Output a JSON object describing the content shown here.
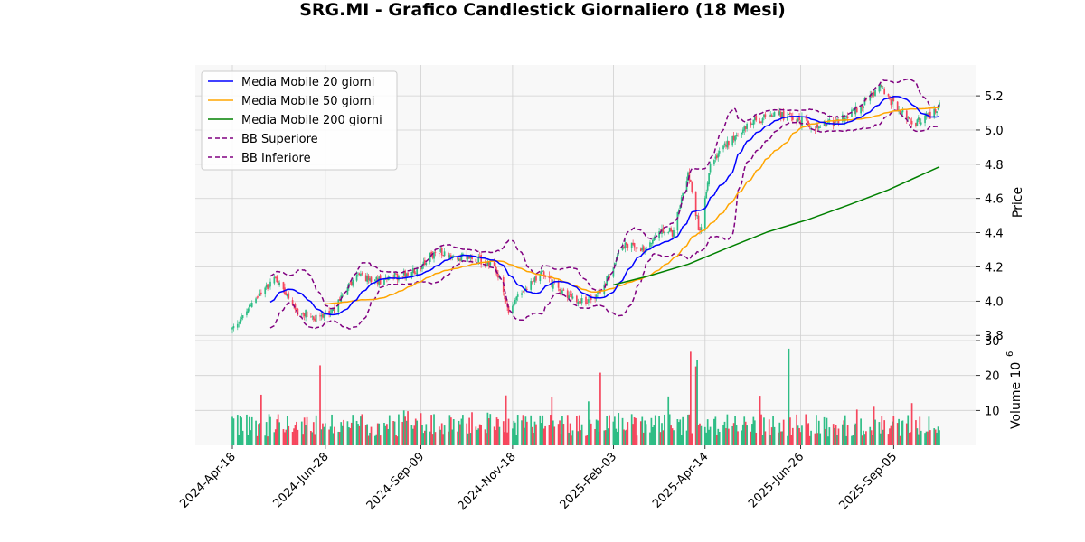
{
  "chart_data": {
    "type": "candlestick",
    "title": "SRG.MI - Grafico Candlestick Giornaliero (18 Mesi)",
    "price_axis": {
      "label": "Price",
      "ylim": [
        3.78,
        5.38
      ],
      "ticks": [
        3.8,
        4.0,
        4.2,
        4.4,
        4.6,
        4.8,
        5.0,
        5.2
      ],
      "tick_labels": [
        "3.8",
        "4.0",
        "4.2",
        "4.4",
        "4.6",
        "4.8",
        "5.0",
        "5.2"
      ]
    },
    "volume_axis": {
      "label": "Volume  10",
      "label_exponent": "6",
      "ylim": [
        0,
        30
      ],
      "ticks": [
        10,
        20,
        30
      ],
      "tick_labels": [
        "10",
        "20",
        "30"
      ]
    },
    "x_axis": {
      "start": "2024-04-18",
      "end": "2025-10-10",
      "ticks": [
        "2024-04-18",
        "2024-06-28",
        "2024-09-09",
        "2024-11-18",
        "2025-02-03",
        "2025-04-14",
        "2025-06-26",
        "2025-09-05"
      ],
      "tick_labels": [
        "2024-Apr-18",
        "2024-Jun-28",
        "2024-Sep-09",
        "2024-Nov-18",
        "2025-Feb-03",
        "2025-Apr-14",
        "2025-Jun-26",
        "2025-Sep-05"
      ]
    },
    "grid": true,
    "legend_position": "upper-left",
    "colors": {
      "up": "#2ebd85",
      "down": "#f6465d",
      "ma20": "#0000ff",
      "ma50": "#ffa500",
      "ma200": "#008000",
      "bb": "#800080",
      "panel_bg": "#f8f8f8",
      "grid": "#d0d0d0"
    },
    "anchors": [
      [
        "2024-04-18",
        3.83
      ],
      [
        "2024-05-10",
        4.05
      ],
      [
        "2024-05-22",
        4.13
      ],
      [
        "2024-06-05",
        3.95
      ],
      [
        "2024-06-20",
        3.9
      ],
      [
        "2024-07-05",
        3.95
      ],
      [
        "2024-07-20",
        4.14
      ],
      [
        "2024-08-10",
        4.12
      ],
      [
        "2024-09-05",
        4.18
      ],
      [
        "2024-09-20",
        4.29
      ],
      [
        "2024-10-05",
        4.26
      ],
      [
        "2024-10-25",
        4.24
      ],
      [
        "2024-11-05",
        4.2
      ],
      [
        "2024-11-15",
        3.95
      ],
      [
        "2024-11-28",
        4.08
      ],
      [
        "2024-12-10",
        4.16
      ],
      [
        "2024-12-25",
        4.05
      ],
      [
        "2025-01-10",
        4.0
      ],
      [
        "2025-01-25",
        4.05
      ],
      [
        "2025-02-10",
        4.33
      ],
      [
        "2025-02-28",
        4.3
      ],
      [
        "2025-03-10",
        4.43
      ],
      [
        "2025-03-20",
        4.4
      ],
      [
        "2025-04-01",
        4.75
      ],
      [
        "2025-04-10",
        4.4
      ],
      [
        "2025-04-18",
        4.82
      ],
      [
        "2025-05-05",
        4.95
      ],
      [
        "2025-05-20",
        5.05
      ],
      [
        "2025-06-10",
        5.09
      ],
      [
        "2025-06-25",
        5.06
      ],
      [
        "2025-07-10",
        5.02
      ],
      [
        "2025-07-25",
        5.06
      ],
      [
        "2025-08-10",
        5.13
      ],
      [
        "2025-08-25",
        5.26
      ],
      [
        "2025-09-05",
        5.15
      ],
      [
        "2025-09-20",
        5.03
      ],
      [
        "2025-10-05",
        5.1
      ],
      [
        "2025-10-10",
        5.15
      ]
    ],
    "volume_spikes": [
      [
        "2024-06-24",
        22.9
      ],
      [
        "2024-05-10",
        14.5
      ],
      [
        "2024-11-13",
        14.3
      ],
      [
        "2025-01-15",
        12.6
      ],
      [
        "2025-01-24",
        20.8
      ],
      [
        "2025-03-17",
        14.0
      ],
      [
        "2025-04-03",
        26.8
      ],
      [
        "2025-04-07",
        22.6
      ],
      [
        "2025-04-08",
        24.5
      ],
      [
        "2025-05-26",
        14.2
      ],
      [
        "2025-06-17",
        27.7
      ],
      [
        "2025-09-19",
        12.1
      ],
      [
        "2024-08-30",
        9.8
      ],
      [
        "2024-10-18",
        9.5
      ],
      [
        "2024-12-18",
        13.8
      ]
    ],
    "ma20_start": "2024-05-17",
    "ma50_start": "2024-06-28",
    "ma200_start": "2025-02-03",
    "ma200_points": [
      [
        "2025-02-03",
        4.095
      ],
      [
        "2025-03-01",
        4.145
      ],
      [
        "2025-04-01",
        4.215
      ],
      [
        "2025-05-01",
        4.31
      ],
      [
        "2025-06-01",
        4.405
      ],
      [
        "2025-07-01",
        4.475
      ],
      [
        "2025-08-01",
        4.56
      ],
      [
        "2025-09-01",
        4.65
      ],
      [
        "2025-10-10",
        4.785
      ]
    ],
    "legend": {
      "ma20": "Media Mobile 20 giorni",
      "ma50": "Media Mobile 50 giorni",
      "ma200": "Media Mobile 200 giorni",
      "bb_upper": "BB Superiore",
      "bb_lower": "BB Inferiore"
    }
  }
}
